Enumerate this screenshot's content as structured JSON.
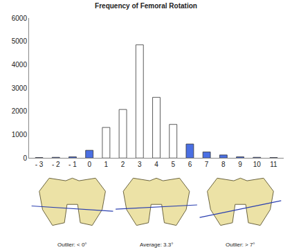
{
  "chart_data": {
    "type": "bar",
    "title": "Frequency of Femoral Rotation",
    "categories": [
      "- 3",
      "- 2",
      "- 1",
      "0",
      "1",
      "2",
      "3",
      "4",
      "5",
      "6",
      "7",
      "8",
      "9",
      "10",
      "11"
    ],
    "values": [
      20,
      30,
      50,
      330,
      1310,
      2080,
      4850,
      2600,
      1440,
      600,
      260,
      130,
      50,
      30,
      20
    ],
    "colors": [
      "#4a6fe3",
      "#4a6fe3",
      "#4a6fe3",
      "#4a6fe3",
      "#ffffff",
      "#ffffff",
      "#ffffff",
      "#ffffff",
      "#ffffff",
      "#4a6fe3",
      "#4a6fe3",
      "#4a6fe3",
      "#4a6fe3",
      "#4a6fe3",
      "#4a6fe3"
    ],
    "ylim": [
      0,
      6000
    ],
    "yticks": [
      0,
      1000,
      2000,
      3000,
      4000,
      5000,
      6000
    ],
    "grid": false,
    "annotations": [
      "Outlier: < 0°",
      "Average: 3.3°",
      "Outlier: > 7°"
    ]
  }
}
